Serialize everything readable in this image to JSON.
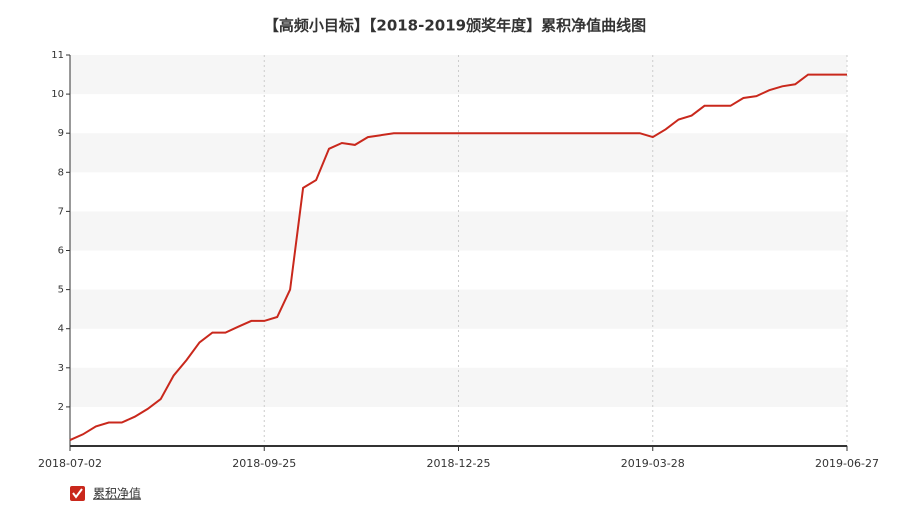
{
  "chart_data": {
    "type": "line",
    "title": "【高频小目标】【2018-2019颁奖年度】累积净值曲线图",
    "categories": [
      "2018-07-02",
      null,
      null,
      null,
      null,
      null,
      null,
      null,
      null,
      null,
      null,
      null,
      null,
      null,
      null,
      "2018-09-25",
      null,
      null,
      null,
      null,
      null,
      null,
      null,
      null,
      null,
      null,
      null,
      null,
      null,
      null,
      "2018-12-25",
      null,
      null,
      null,
      null,
      null,
      null,
      null,
      null,
      null,
      null,
      null,
      null,
      null,
      null,
      "2019-03-28",
      null,
      null,
      null,
      null,
      null,
      null,
      null,
      null,
      null,
      null,
      null,
      null,
      null,
      null,
      "2019-06-27"
    ],
    "series": [
      {
        "name": "累积净值",
        "color": "#c9281c",
        "values": [
          1.15,
          1.3,
          1.5,
          1.6,
          1.6,
          1.75,
          1.95,
          2.2,
          2.8,
          3.2,
          3.65,
          3.9,
          3.9,
          4.05,
          4.2,
          4.2,
          4.3,
          5.0,
          7.6,
          7.8,
          8.6,
          8.75,
          8.7,
          8.9,
          8.95,
          9.0,
          9.0,
          9.0,
          9.0,
          9.0,
          9.0,
          9.0,
          9.0,
          9.0,
          9.0,
          9.0,
          9.0,
          9.0,
          9.0,
          9.0,
          9.0,
          9.0,
          9.0,
          9.0,
          9.0,
          8.9,
          9.1,
          9.35,
          9.45,
          9.7,
          9.7,
          9.7,
          9.9,
          9.95,
          10.1,
          10.2,
          10.25,
          10.5,
          10.5,
          10.5,
          10.5
        ]
      }
    ],
    "ylim": [
      1,
      11
    ],
    "yticks": [
      2,
      3,
      4,
      5,
      6,
      7,
      8,
      9,
      10,
      11
    ],
    "grid": true
  }
}
